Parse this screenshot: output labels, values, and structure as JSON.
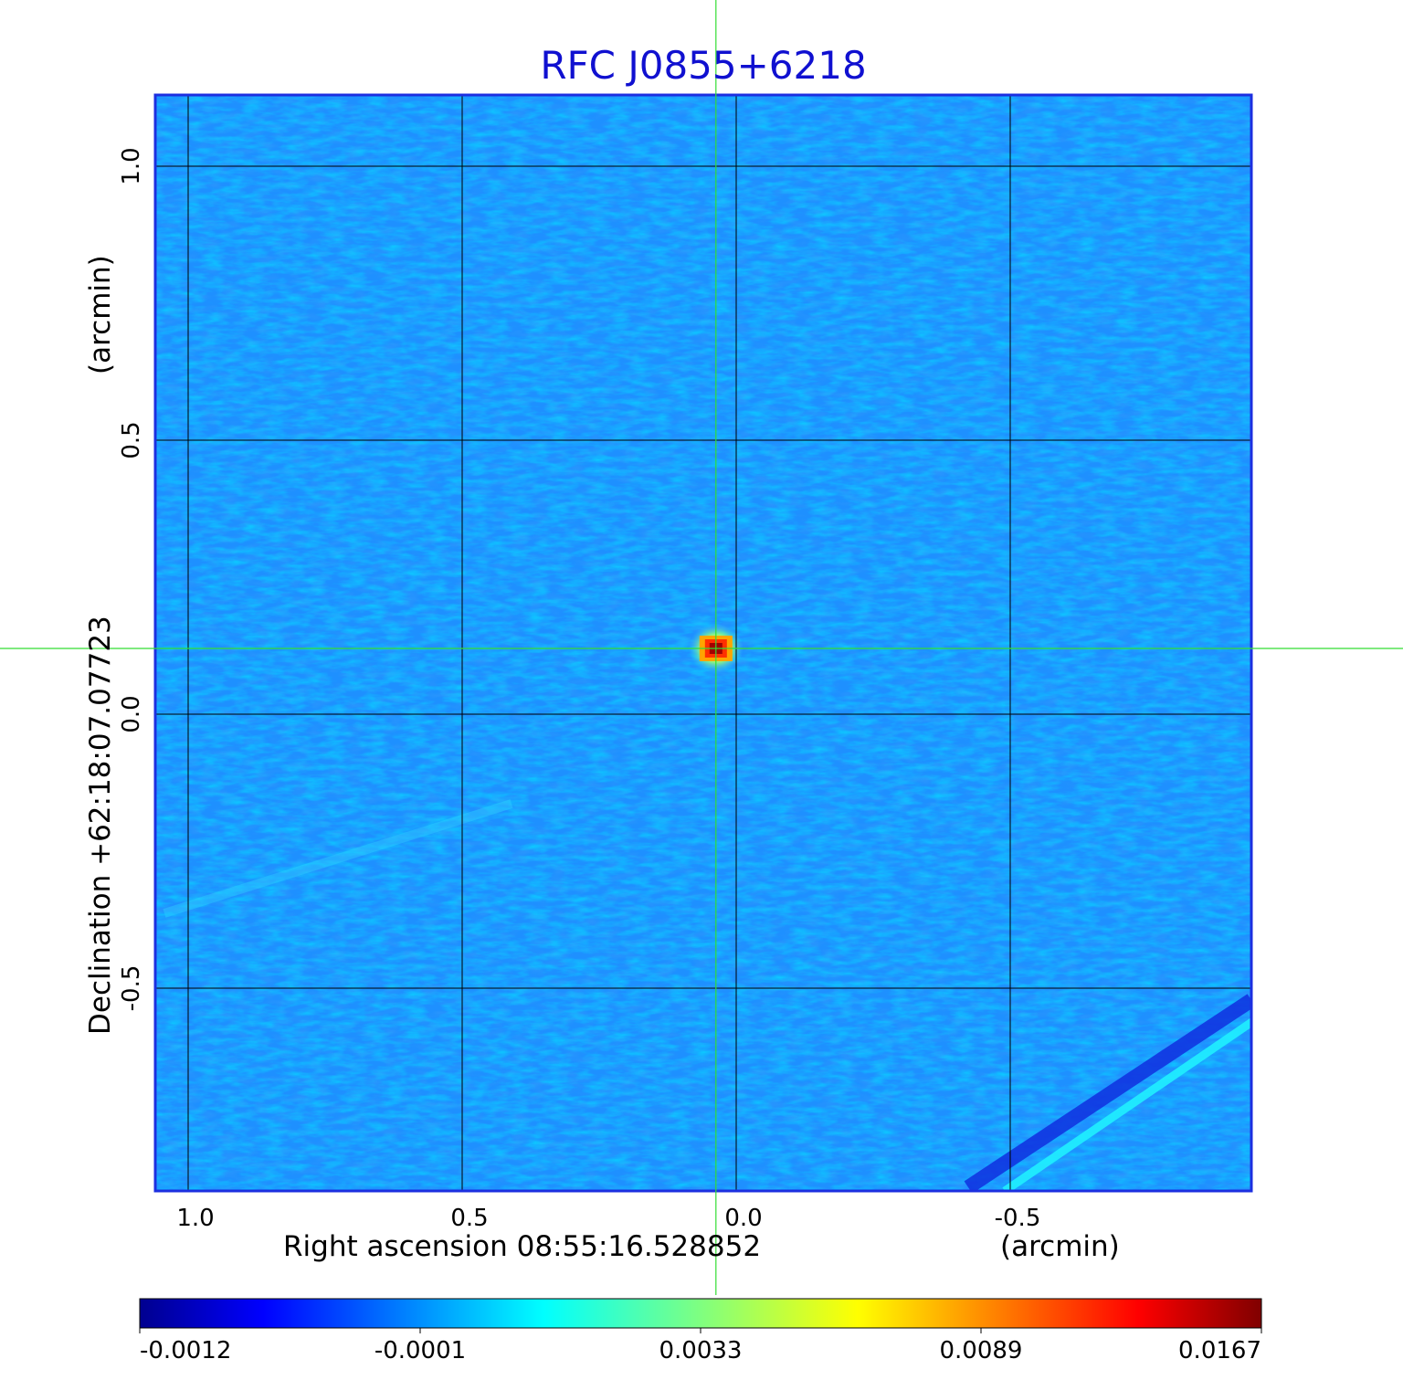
{
  "chart_data": {
    "type": "heatmap",
    "title": "RFC J0855+6218",
    "xlabel": "Right ascension  08:55:16.528852",
    "xunit": "(arcmin)",
    "ylabel": "Declination  +62:18:07.07723",
    "yunit": "(arcmin)",
    "xlim": [
      1.06,
      -0.94
    ],
    "ylim": [
      -0.87,
      1.13
    ],
    "x_ticks": [
      {
        "value": 1.0,
        "label": "1.0"
      },
      {
        "value": 0.5,
        "label": "0.5"
      },
      {
        "value": 0.0,
        "label": "0.0"
      },
      {
        "value": -0.5,
        "label": "-0.5"
      }
    ],
    "y_ticks": [
      {
        "value": 1.0,
        "label": "1.0"
      },
      {
        "value": 0.5,
        "label": "0.5"
      },
      {
        "value": 0.0,
        "label": "0.0"
      },
      {
        "value": -0.5,
        "label": "-0.5"
      }
    ],
    "grid": true,
    "crosshair": {
      "x": 0.037,
      "y": 0.12,
      "color": "#33dd33"
    },
    "source": {
      "x": 0.037,
      "y": 0.12,
      "peak": 0.0167
    },
    "colorbar": {
      "colormap": "jet",
      "tick_labels": [
        "-0.0012",
        "-0.0001",
        "0.0033",
        "0.0089",
        "0.0167"
      ]
    },
    "colors": {
      "title": "#1010d0",
      "frame": "#1c2fe0",
      "grid": "#000000",
      "background_field": "#1e90ff"
    }
  }
}
